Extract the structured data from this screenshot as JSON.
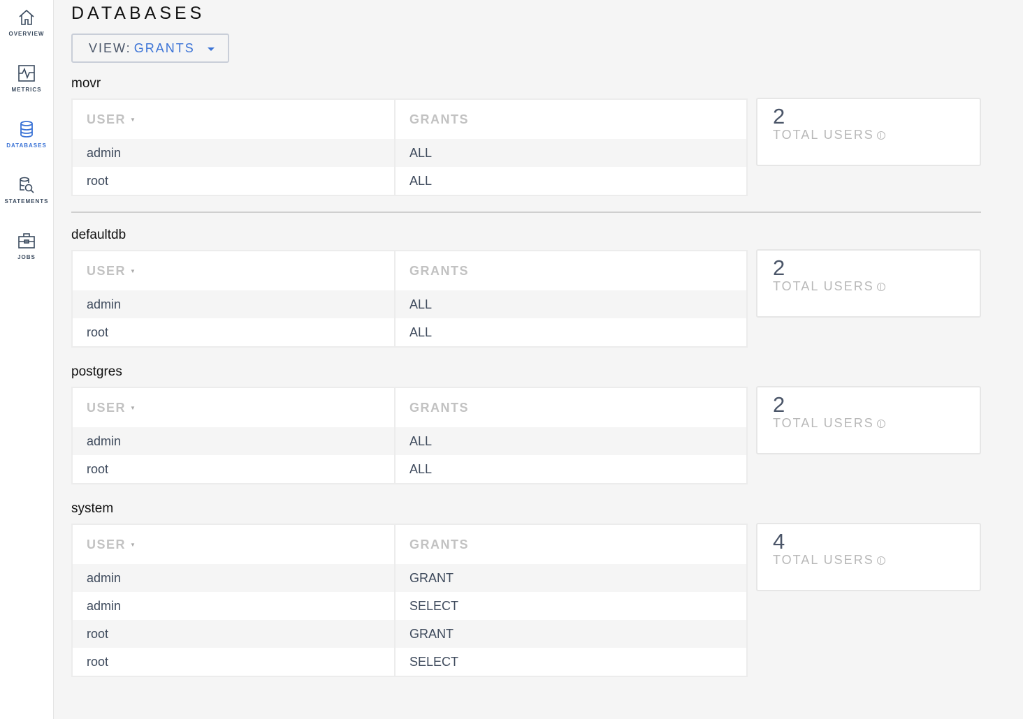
{
  "sidebar": {
    "items": [
      {
        "label": "OVERVIEW",
        "icon": "home-icon"
      },
      {
        "label": "METRICS",
        "icon": "metrics-icon"
      },
      {
        "label": "DATABASES",
        "icon": "database-icon",
        "active": true
      },
      {
        "label": "STATEMENTS",
        "icon": "statements-icon"
      },
      {
        "label": "JOBS",
        "icon": "briefcase-icon"
      }
    ]
  },
  "page": {
    "title": "DATABASES",
    "view_label": "VIEW:",
    "view_value": "GRANTS"
  },
  "columns": {
    "user": "USER",
    "grants": "GRANTS"
  },
  "card_label": "TOTAL USERS",
  "colors": {
    "accent": "#3b73d6"
  },
  "databases": [
    {
      "name": "movr",
      "total_users": "2",
      "rows": [
        [
          "admin",
          "ALL"
        ],
        [
          "root",
          "ALL"
        ]
      ]
    },
    {
      "name": "defaultdb",
      "total_users": "2",
      "rows": [
        [
          "admin",
          "ALL"
        ],
        [
          "root",
          "ALL"
        ]
      ]
    },
    {
      "name": "postgres",
      "total_users": "2",
      "rows": [
        [
          "admin",
          "ALL"
        ],
        [
          "root",
          "ALL"
        ]
      ]
    },
    {
      "name": "system",
      "total_users": "4",
      "rows": [
        [
          "admin",
          "GRANT"
        ],
        [
          "admin",
          "SELECT"
        ],
        [
          "root",
          "GRANT"
        ],
        [
          "root",
          "SELECT"
        ]
      ]
    }
  ]
}
